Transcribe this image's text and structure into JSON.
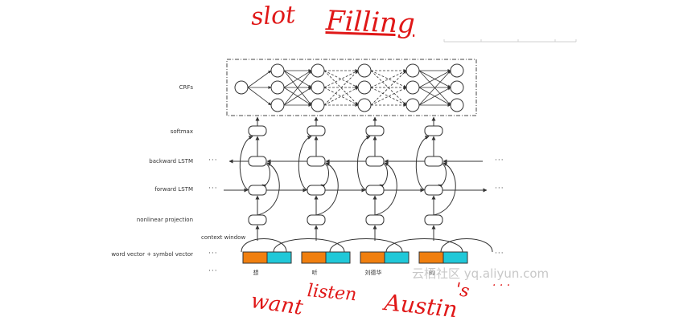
{
  "annotations": {
    "title_part1": "slot",
    "title_part2": "Filling",
    "word_1": "want",
    "word_2": "listen",
    "word_3": "Austin",
    "word_4": "'s",
    "trailing_dots": ". . ."
  },
  "diagram": {
    "layers": {
      "crfs": "CRFs",
      "softmax": "softmax",
      "backward_lstm": "backward LSTM",
      "forward_lstm": "forward LSTM",
      "nonlinear_projection": "nonlinear projection",
      "context_window": "context window",
      "word_vector": "word vector + symbol vector"
    },
    "ellipsis": "···",
    "tokens": [
      "想",
      "听",
      "刘德华",
      "的"
    ],
    "colors": {
      "word_vector": "#f07f0f",
      "symbol_vector": "#20c8d8",
      "annotation": "#e01818",
      "line": "#333333"
    }
  },
  "watermark": "云栖社区 yq.aliyun.com"
}
